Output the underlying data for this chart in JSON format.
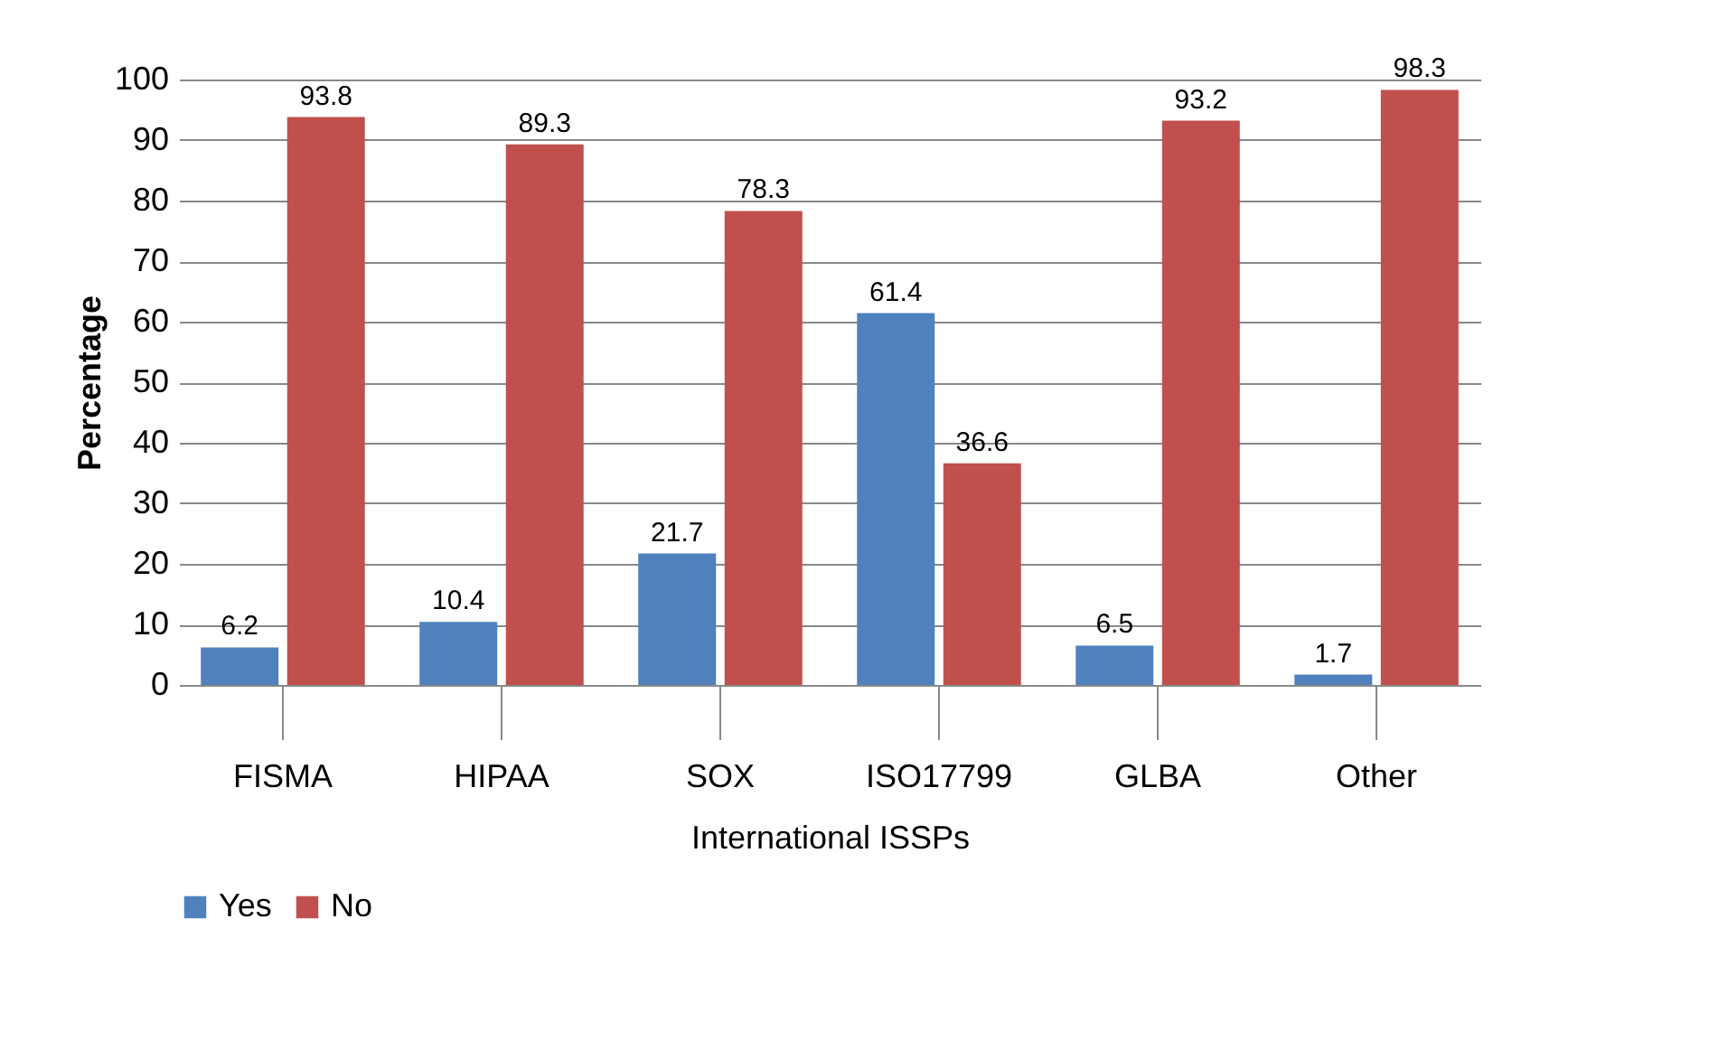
{
  "chart_data": {
    "type": "bar",
    "xlabel": "International ISSPs",
    "ylabel": "Percentage",
    "categories": [
      "FISMA",
      "HIPAA",
      "SOX",
      "ISO17799",
      "GLBA",
      "Other"
    ],
    "series": [
      {
        "name": "Yes",
        "color": "#4f81bd",
        "values": [
          6.2,
          10.4,
          21.7,
          61.4,
          6.5,
          1.7
        ]
      },
      {
        "name": "No",
        "color": "#c0504d",
        "values": [
          93.8,
          89.3,
          78.3,
          36.6,
          93.2,
          98.3
        ]
      }
    ],
    "ylim": [
      0,
      100
    ],
    "yticks": [
      0,
      10,
      20,
      30,
      40,
      50,
      60,
      70,
      80,
      90,
      100
    ],
    "grid": "y",
    "legend": "bottom",
    "data_labels": true
  }
}
